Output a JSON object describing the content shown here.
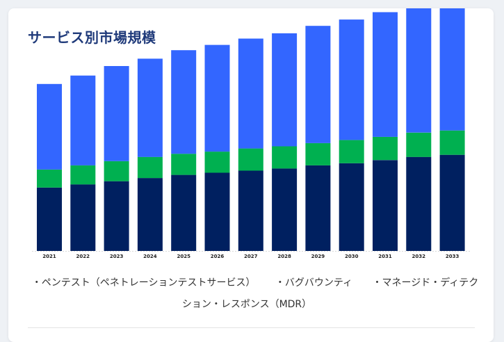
{
  "title": "サービス別市場規模",
  "chart_data": {
    "type": "bar",
    "stacked": true,
    "categories": [
      "2021",
      "2022",
      "2023",
      "2024",
      "2025",
      "2026",
      "2027",
      "2028",
      "2029",
      "2030",
      "2031",
      "2032",
      "2033"
    ],
    "series": [
      {
        "name": "ペンテスト（ペネトレーションテストサービス）",
        "color": "#002060",
        "values": [
          60,
          63,
          66,
          69,
          72,
          74,
          76,
          78,
          81,
          83,
          86,
          89,
          91
        ]
      },
      {
        "name": "バグバウンティ",
        "color": "#00b050",
        "values": [
          17,
          18,
          19,
          20,
          20,
          20,
          21,
          21,
          21,
          22,
          22,
          23,
          23
        ]
      },
      {
        "name": "マネージド・ディテクション・レスポンス（MDR）",
        "color": "#3366ff",
        "values": [
          81,
          85,
          90,
          93,
          98,
          101,
          104,
          107,
          111,
          114,
          118,
          121,
          125
        ]
      }
    ],
    "xlabel": "",
    "ylabel": "",
    "grid": false,
    "legend_position": "bottom"
  },
  "legend": {
    "marker": "・",
    "items": [
      "ペンテスト（ペネトレーションテストサービス）",
      "バグバウンティ",
      "マネージド・ディテクション・レスポンス（MDR）"
    ]
  }
}
